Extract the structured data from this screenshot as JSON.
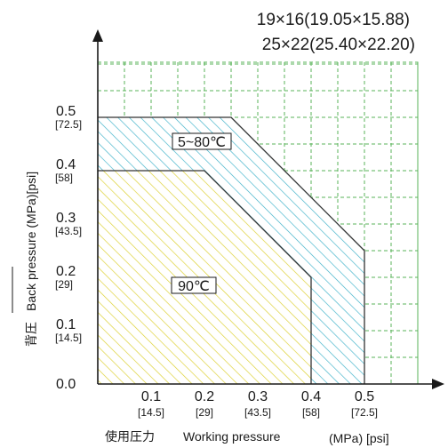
{
  "chart_data": {
    "type": "area",
    "title_lines": [
      "19×16(19.05×15.88)",
      "25×22(25.40×22.20)"
    ],
    "xlabel_jp": "使用圧力",
    "xlabel_en": "Working pressure",
    "xlabel_unit": "(MPa) [psi]",
    "ylabel_jp": "背圧",
    "ylabel_en": "Back pressure (MPa)[psi]",
    "xlim": [
      0,
      0.6
    ],
    "ylim": [
      0,
      0.6
    ],
    "grid": true,
    "x_ticks": [
      {
        "value": 0.1,
        "label": "0.1",
        "sub": "[14.5]"
      },
      {
        "value": 0.2,
        "label": "0.2",
        "sub": "[29]"
      },
      {
        "value": 0.3,
        "label": "0.3",
        "sub": "[43.5]"
      },
      {
        "value": 0.4,
        "label": "0.4",
        "sub": "[58]"
      },
      {
        "value": 0.5,
        "label": "0.5",
        "sub": "[72.5]"
      }
    ],
    "y_ticks": [
      {
        "value": 0.0,
        "label": "0.0",
        "sub": ""
      },
      {
        "value": 0.1,
        "label": "0.1",
        "sub": "[14.5]"
      },
      {
        "value": 0.2,
        "label": "0.2",
        "sub": "[29]"
      },
      {
        "value": 0.3,
        "label": "0.3",
        "sub": "[43.5]"
      },
      {
        "value": 0.4,
        "label": "0.4",
        "sub": "[58]"
      },
      {
        "value": 0.5,
        "label": "0.5",
        "sub": "[72.5]"
      }
    ],
    "regions": [
      {
        "name": "5~80℃",
        "color": "#3ab0c8",
        "points": [
          [
            0,
            0
          ],
          [
            0,
            0.5
          ],
          [
            0.25,
            0.5
          ],
          [
            0.5,
            0.25
          ],
          [
            0.5,
            0
          ]
        ]
      },
      {
        "name": "90℃",
        "color": "#dccf2a",
        "points": [
          [
            0,
            0
          ],
          [
            0,
            0.4
          ],
          [
            0.2,
            0.4
          ],
          [
            0.4,
            0.2
          ],
          [
            0.4,
            0
          ]
        ]
      }
    ]
  },
  "colors": {
    "grid": "#59b359",
    "axis": "#1a1a1a",
    "outline": "#333333"
  }
}
